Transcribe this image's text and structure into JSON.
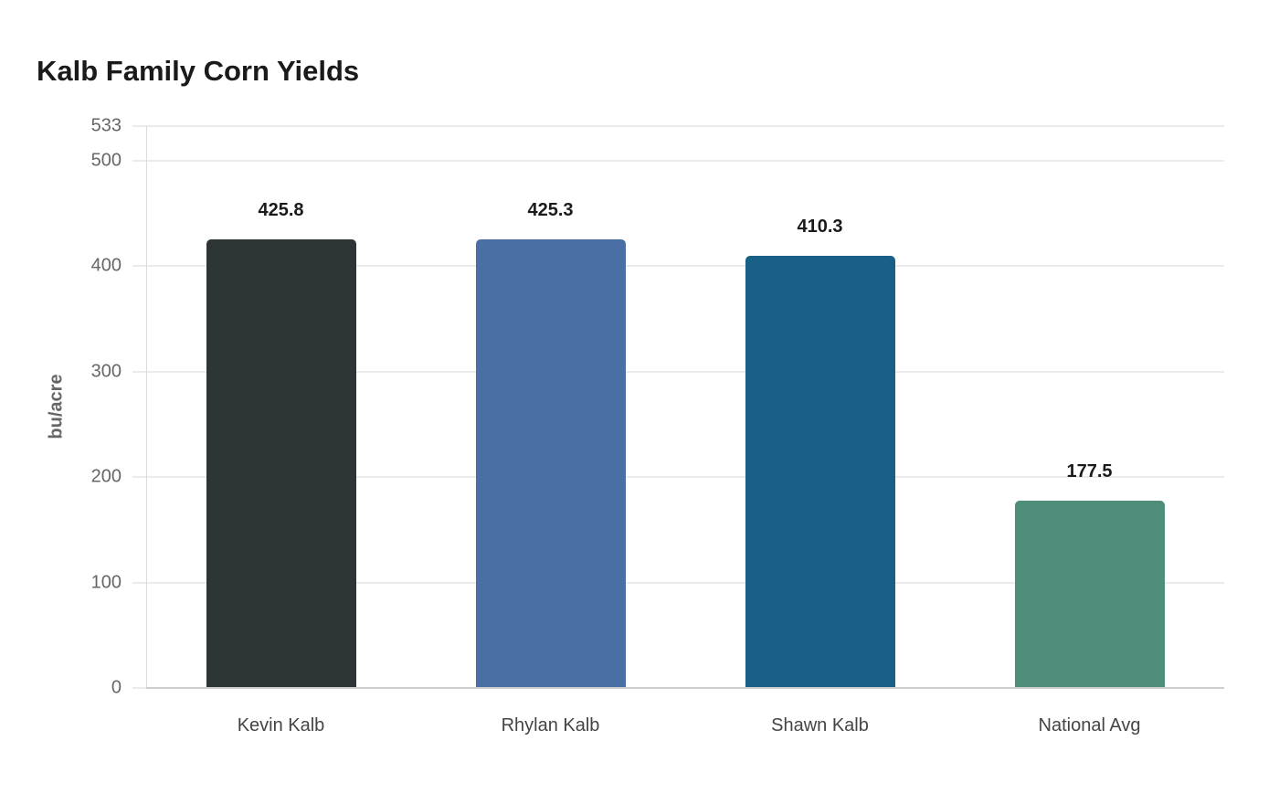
{
  "chart_data": {
    "type": "bar",
    "title": "Kalb Family Corn Yields",
    "xlabel": "",
    "ylabel": "bu/acre",
    "categories": [
      "Kevin Kalb",
      "Rhylan Kalb",
      "Shawn Kalb",
      "National Avg"
    ],
    "values": [
      425.8,
      425.3,
      410.3,
      177.5
    ],
    "value_labels": [
      "425.8",
      "425.3",
      "410.3",
      "177.5"
    ],
    "colors": [
      "#2d3436",
      "#4a6fa5",
      "#186085",
      "#4f8c7a"
    ],
    "ylim": [
      0,
      533
    ],
    "yticks": [
      0,
      100,
      200,
      300,
      400,
      500,
      533
    ],
    "ytick_labels": [
      "0",
      "100",
      "200",
      "300",
      "400",
      "500",
      "533"
    ],
    "grid": true,
    "legend": null
  }
}
